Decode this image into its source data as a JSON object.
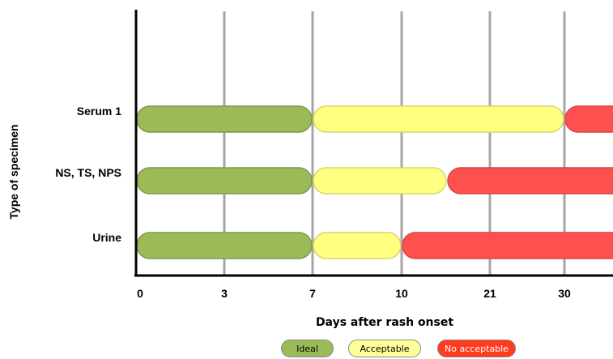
{
  "chart_data": {
    "type": "bar",
    "orientation": "horizontal-range",
    "categories": [
      "Serum 1",
      "NS, TS, NPS",
      "Urine"
    ],
    "x_ticks": [
      "0",
      "3",
      "7",
      "10",
      "21",
      "30"
    ],
    "xlabel": "Days after rash onset",
    "ylabel": "Type of specimen",
    "grid": "vertical",
    "series": [
      {
        "name": "Ideal",
        "color": "#9bbb59",
        "ranges": [
          [
            "0",
            "7"
          ],
          [
            "0",
            "7"
          ],
          [
            "0",
            "7"
          ]
        ]
      },
      {
        "name": "Acceptable",
        "color": "#ffff80",
        "ranges": [
          [
            "7",
            "30"
          ],
          [
            "7",
            "14"
          ],
          [
            "7",
            "10"
          ]
        ]
      },
      {
        "name": "No acceptable",
        "color": "#ff5050",
        "ranges": [
          [
            "30",
            ">30"
          ],
          [
            "14",
            ">30"
          ],
          [
            "10",
            ">30"
          ]
        ]
      }
    ]
  },
  "legend": {
    "items": [
      {
        "label": "Ideal",
        "color": "#9bbb59",
        "text_color": "#000000"
      },
      {
        "label": "Acceptable",
        "color": "#ffff99",
        "text_color": "#000000"
      },
      {
        "label": "No acceptable",
        "color": "#ff3b1f",
        "text_color": "#ffffff"
      }
    ]
  }
}
